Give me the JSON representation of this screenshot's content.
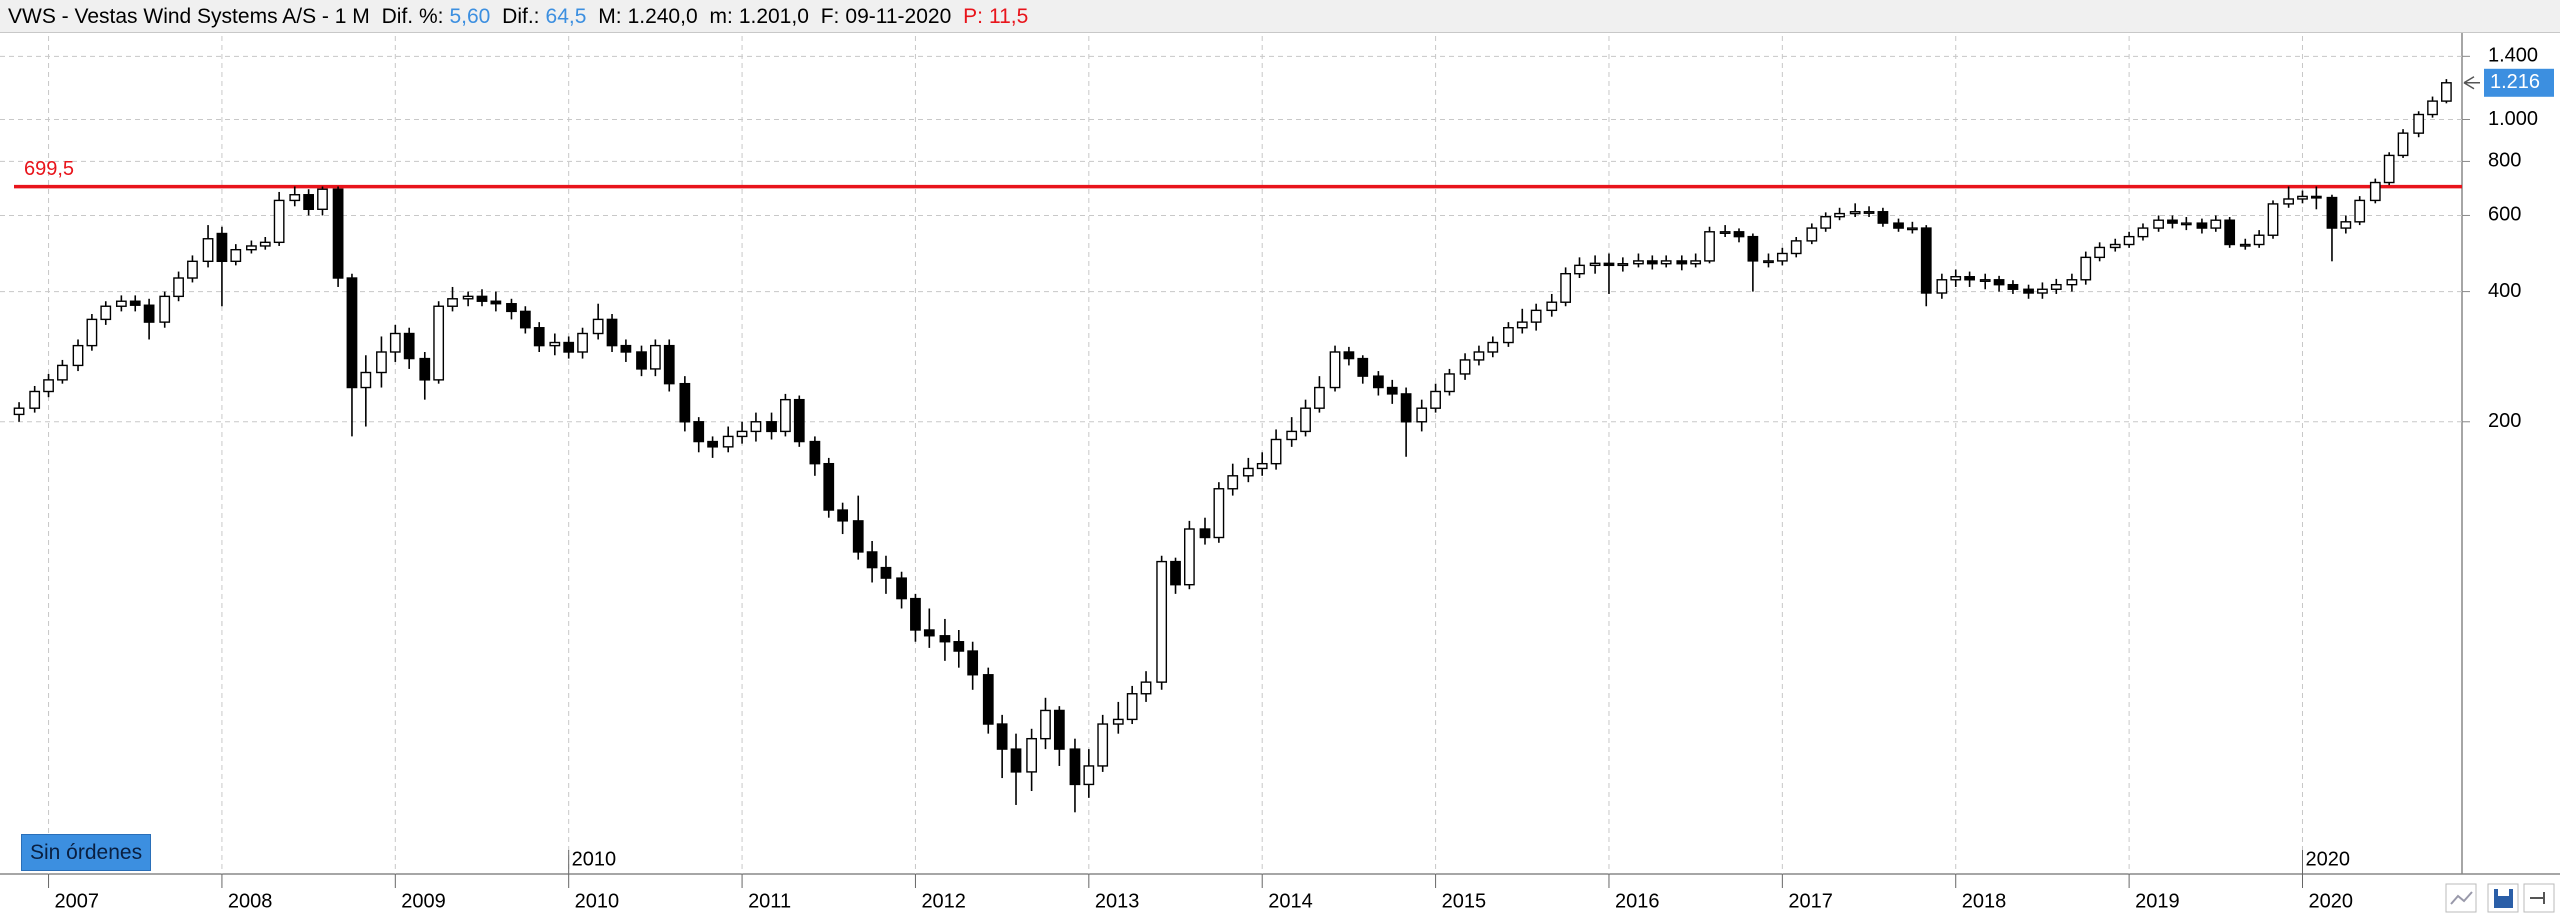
{
  "header": {
    "symbol": "VWS - Vestas Wind Systems A/S - 1 M",
    "dif_pct_label": "Dif. %:",
    "dif_pct": "5,60",
    "dif_label": "Dif.:",
    "dif": "64,5",
    "max_label": "M:",
    "max": "1.240,0",
    "min_label": "m:",
    "min": "1.201,0",
    "date_label": "F:",
    "date": "09-11-2020",
    "p_label": "P:",
    "p": "11,5"
  },
  "orders_button": "Sin órdenes",
  "chart_data": {
    "type": "candlestick",
    "log_scale": true,
    "grid": true,
    "up_color": "#ffffff",
    "down_color": "#000000",
    "xlim": [
      2006.72,
      2020.92
    ],
    "xticks": [
      2007,
      2008,
      2009,
      2010,
      2011,
      2012,
      2013,
      2014,
      2015,
      2016,
      2017,
      2018,
      2019,
      2020
    ],
    "period_markers": [
      2010,
      2020
    ],
    "ylim": [
      18,
      1560
    ],
    "yticks": [
      200,
      400,
      600,
      800,
      {
        "value": 1000,
        "label": "1.000"
      },
      {
        "value": 1400,
        "label": "1.400"
      }
    ],
    "hline": {
      "value": 699.5,
      "label": "699,5",
      "color": "#e8141b"
    },
    "last_price": {
      "value": 1216,
      "label": "1.216",
      "color": "#3c8fe0"
    },
    "x": [
      2006.83,
      2006.92,
      2007,
      2007.08,
      2007.17,
      2007.25,
      2007.33,
      2007.42,
      2007.5,
      2007.58,
      2007.67,
      2007.75,
      2007.83,
      2007.92,
      2008,
      2008.08,
      2008.17,
      2008.25,
      2008.33,
      2008.42,
      2008.5,
      2008.58,
      2008.67,
      2008.75,
      2008.83,
      2008.92,
      2009,
      2009.08,
      2009.17,
      2009.25,
      2009.33,
      2009.42,
      2009.5,
      2009.58,
      2009.67,
      2009.75,
      2009.83,
      2009.92,
      2010,
      2010.08,
      2010.17,
      2010.25,
      2010.33,
      2010.42,
      2010.5,
      2010.58,
      2010.67,
      2010.75,
      2010.83,
      2010.92,
      2011,
      2011.08,
      2011.17,
      2011.25,
      2011.33,
      2011.42,
      2011.5,
      2011.58,
      2011.67,
      2011.75,
      2011.83,
      2011.92,
      2012,
      2012.08,
      2012.17,
      2012.25,
      2012.33,
      2012.42,
      2012.5,
      2012.58,
      2012.67,
      2012.75,
      2012.83,
      2012.92,
      2013,
      2013.08,
      2013.17,
      2013.25,
      2013.33,
      2013.42,
      2013.5,
      2013.58,
      2013.67,
      2013.75,
      2013.83,
      2013.92,
      2014,
      2014.08,
      2014.17,
      2014.25,
      2014.33,
      2014.42,
      2014.5,
      2014.58,
      2014.67,
      2014.75,
      2014.83,
      2014.92,
      2015,
      2015.08,
      2015.17,
      2015.25,
      2015.33,
      2015.42,
      2015.5,
      2015.58,
      2015.67,
      2015.75,
      2015.83,
      2015.92,
      2016,
      2016.08,
      2016.17,
      2016.25,
      2016.33,
      2016.42,
      2016.5,
      2016.58,
      2016.67,
      2016.75,
      2016.83,
      2016.92,
      2017,
      2017.08,
      2017.17,
      2017.25,
      2017.33,
      2017.42,
      2017.5,
      2017.58,
      2017.67,
      2017.75,
      2017.83,
      2017.92,
      2018,
      2018.08,
      2018.17,
      2018.25,
      2018.33,
      2018.42,
      2018.5,
      2018.58,
      2018.67,
      2018.75,
      2018.83,
      2018.92,
      2019,
      2019.08,
      2019.17,
      2019.25,
      2019.33,
      2019.42,
      2019.5,
      2019.58,
      2019.67,
      2019.75,
      2019.83,
      2019.92,
      2020,
      2020.08,
      2020.17,
      2020.25,
      2020.33,
      2020.42,
      2020.5,
      2020.58,
      2020.67,
      2020.75,
      2020.83
    ],
    "open": [
      208,
      215,
      235,
      250,
      270,
      300,
      345,
      370,
      380,
      372,
      340,
      390,
      430,
      470,
      545,
      470,
      500,
      510,
      520,
      650,
      670,
      620,
      690,
      430,
      240,
      260,
      290,
      320,
      280,
      250,
      370,
      385,
      390,
      380,
      375,
      360,
      330,
      300,
      305,
      290,
      320,
      345,
      300,
      290,
      265,
      300,
      245,
      200,
      180,
      175,
      185,
      190,
      200,
      190,
      225,
      180,
      160,
      125,
      118,
      100,
      92,
      87,
      78,
      66,
      64,
      62,
      59,
      52,
      40,
      35,
      31,
      37,
      43,
      35,
      29,
      32,
      40,
      41,
      47,
      50,
      95,
      84,
      113,
      108,
      140,
      150,
      156,
      160,
      182,
      190,
      215,
      240,
      290,
      280,
      255,
      240,
      232,
      200,
      215,
      235,
      258,
      278,
      290,
      305,
      330,
      340,
      362,
      378,
      440,
      460,
      465,
      460,
      464,
      471,
      464,
      471,
      464,
      471,
      550,
      550,
      536,
      471,
      471,
      490,
      524,
      561,
      596,
      606,
      612,
      612,
      576,
      561,
      561,
      397,
      426,
      433,
      426,
      426,
      415,
      405,
      397,
      405,
      415,
      426,
      480,
      506,
      514,
      536,
      561,
      585,
      576,
      576,
      561,
      585,
      514,
      514,
      540,
      638,
      655,
      664,
      660,
      561,
      580,
      650,
      715,
      826,
      930,
      1027,
      1103
    ],
    "high": [
      222,
      242,
      258,
      278,
      310,
      355,
      380,
      392,
      392,
      385,
      400,
      445,
      485,
      570,
      565,
      515,
      525,
      535,
      680,
      700,
      690,
      700,
      700,
      440,
      285,
      315,
      335,
      330,
      290,
      380,
      410,
      400,
      405,
      400,
      385,
      370,
      340,
      320,
      315,
      330,
      375,
      355,
      310,
      300,
      310,
      310,
      255,
      205,
      185,
      195,
      200,
      210,
      210,
      232,
      230,
      185,
      165,
      130,
      135,
      106,
      98,
      90,
      80,
      74,
      70,
      66,
      62,
      54,
      42,
      38,
      39,
      46,
      44,
      37,
      35,
      42,
      45,
      49,
      53,
      98,
      97,
      118,
      120,
      145,
      160,
      165,
      170,
      192,
      205,
      225,
      255,
      300,
      298,
      285,
      262,
      250,
      240,
      225,
      245,
      265,
      288,
      300,
      315,
      340,
      365,
      375,
      395,
      455,
      480,
      485,
      490,
      480,
      490,
      485,
      485,
      485,
      490,
      565,
      570,
      560,
      545,
      490,
      505,
      535,
      575,
      610,
      625,
      640,
      630,
      625,
      590,
      580,
      570,
      440,
      450,
      445,
      440,
      435,
      425,
      415,
      420,
      428,
      440,
      495,
      520,
      530,
      550,
      575,
      600,
      600,
      595,
      590,
      600,
      595,
      530,
      555,
      650,
      700,
      685,
      700,
      670,
      600,
      665,
      730,
      840,
      950,
      1045,
      1130,
      1240
    ],
    "low": [
      200,
      210,
      228,
      245,
      262,
      292,
      335,
      360,
      360,
      310,
      330,
      380,
      420,
      455,
      370,
      460,
      490,
      500,
      510,
      630,
      600,
      600,
      410,
      185,
      195,
      240,
      275,
      265,
      225,
      245,
      360,
      370,
      370,
      360,
      345,
      320,
      290,
      285,
      280,
      280,
      310,
      290,
      275,
      255,
      255,
      235,
      190,
      170,
      165,
      170,
      178,
      180,
      182,
      185,
      175,
      150,
      120,
      110,
      96,
      85,
      80,
      74,
      62,
      60,
      56,
      54,
      48,
      38,
      30,
      26,
      28,
      35,
      32,
      25,
      27,
      31,
      38,
      40,
      45,
      48,
      80,
      82,
      104,
      105,
      135,
      145,
      150,
      155,
      175,
      185,
      210,
      235,
      270,
      245,
      230,
      220,
      166,
      190,
      210,
      230,
      250,
      270,
      282,
      298,
      320,
      325,
      350,
      370,
      430,
      440,
      395,
      445,
      455,
      450,
      455,
      448,
      455,
      465,
      535,
      520,
      400,
      455,
      460,
      480,
      515,
      550,
      585,
      595,
      595,
      565,
      550,
      545,
      370,
      385,
      410,
      410,
      405,
      400,
      395,
      385,
      385,
      395,
      400,
      415,
      470,
      495,
      505,
      525,
      550,
      560,
      555,
      545,
      550,
      505,
      500,
      505,
      530,
      625,
      640,
      620,
      470,
      545,
      570,
      640,
      705,
      815,
      910,
      1010,
      1090
    ],
    "close": [
      215,
      235,
      250,
      270,
      300,
      345,
      370,
      380,
      372,
      340,
      390,
      430,
      470,
      530,
      470,
      500,
      510,
      520,
      650,
      670,
      620,
      690,
      430,
      240,
      260,
      290,
      320,
      280,
      250,
      370,
      385,
      390,
      380,
      375,
      360,
      330,
      300,
      305,
      290,
      320,
      345,
      300,
      290,
      265,
      300,
      245,
      200,
      180,
      175,
      185,
      190,
      200,
      190,
      225,
      180,
      160,
      125,
      118,
      100,
      92,
      87,
      78,
      66,
      64,
      62,
      59,
      52,
      40,
      35,
      31,
      37,
      43,
      35,
      29,
      32,
      40,
      41,
      47,
      50,
      95,
      84,
      113,
      108,
      140,
      150,
      156,
      160,
      182,
      190,
      215,
      240,
      290,
      280,
      255,
      240,
      232,
      200,
      215,
      235,
      258,
      278,
      290,
      305,
      330,
      340,
      362,
      378,
      440,
      460,
      465,
      460,
      464,
      471,
      464,
      471,
      464,
      471,
      550,
      550,
      536,
      471,
      471,
      490,
      524,
      561,
      596,
      606,
      612,
      612,
      576,
      561,
      561,
      397,
      426,
      433,
      426,
      426,
      415,
      405,
      397,
      405,
      415,
      426,
      480,
      506,
      514,
      536,
      561,
      585,
      576,
      576,
      561,
      585,
      514,
      514,
      540,
      638,
      655,
      664,
      660,
      561,
      580,
      650,
      715,
      826,
      930,
      1027,
      1103,
      1216
    ]
  }
}
